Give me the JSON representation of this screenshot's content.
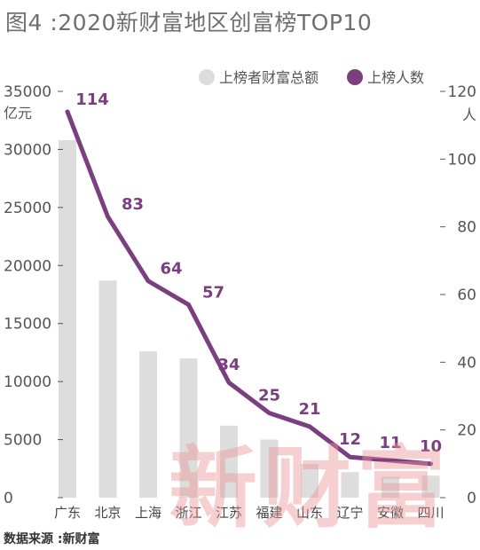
{
  "title": "图4 :2020新财富地区创富榜TOP10",
  "source": "数据来源 :新财富",
  "watermark": "新财富",
  "colors": {
    "bar": "#dddddd",
    "line": "#7b3f80",
    "axis": "#555555"
  },
  "chart_data": {
    "type": "bar+line",
    "categories": [
      "广东",
      "北京",
      "上海",
      "浙江",
      "江苏",
      "福建",
      "山东",
      "辽宁",
      "安徽",
      "四川"
    ],
    "series": [
      {
        "name": "上榜者财富总额",
        "type": "bar",
        "axis": "left",
        "values": [
          30800,
          18700,
          12600,
          12000,
          6200,
          5000,
          2900,
          2200,
          1800,
          1900
        ]
      },
      {
        "name": "上榜人数",
        "type": "line",
        "axis": "right",
        "values": [
          114,
          83,
          64,
          57,
          34,
          25,
          21,
          12,
          11,
          10
        ]
      }
    ],
    "y_left": {
      "unit": "亿元",
      "ylim": [
        0,
        35000
      ],
      "ticks": [
        0,
        5000,
        10000,
        15000,
        20000,
        25000,
        30000,
        35000
      ]
    },
    "y_right": {
      "unit": "人",
      "ylim": [
        0,
        120
      ],
      "ticks": [
        0,
        20,
        40,
        60,
        80,
        100,
        120
      ]
    },
    "legend_position": "top-right",
    "grid": false
  }
}
